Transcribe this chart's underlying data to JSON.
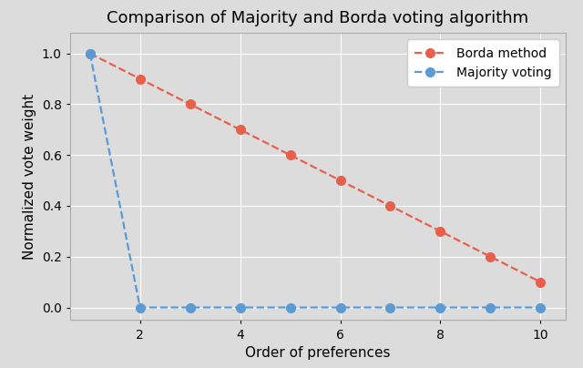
{
  "title": "Comparison of Majority and Borda voting algorithm",
  "xlabel": "Order of preferences",
  "ylabel": "Normalized vote weight",
  "x": [
    1,
    2,
    3,
    4,
    5,
    6,
    7,
    8,
    9,
    10
  ],
  "borda_y": [
    1.0,
    0.9,
    0.8,
    0.7,
    0.6,
    0.5,
    0.4,
    0.3,
    0.2,
    0.1
  ],
  "majority_y": [
    1.0,
    0.0,
    0.0,
    0.0,
    0.0,
    0.0,
    0.0,
    0.0,
    0.0,
    0.0
  ],
  "borda_color": "#e8604c",
  "majority_color": "#5b9bd5",
  "borda_label": "Borda method",
  "majority_label": "Majority voting",
  "xlim": [
    0.6,
    10.5
  ],
  "ylim": [
    -0.05,
    1.08
  ],
  "xticks": [
    2,
    4,
    6,
    8,
    10
  ],
  "yticks": [
    0.0,
    0.2,
    0.4,
    0.6,
    0.8,
    1.0
  ],
  "fig_bg_color": "#dcdcdc",
  "plot_bg_color": "#dcdcdc",
  "grid_color": "#ffffff",
  "title_fontsize": 13,
  "label_fontsize": 11,
  "tick_fontsize": 10,
  "legend_fontsize": 10,
  "marker_size": 7,
  "line_width": 1.6
}
